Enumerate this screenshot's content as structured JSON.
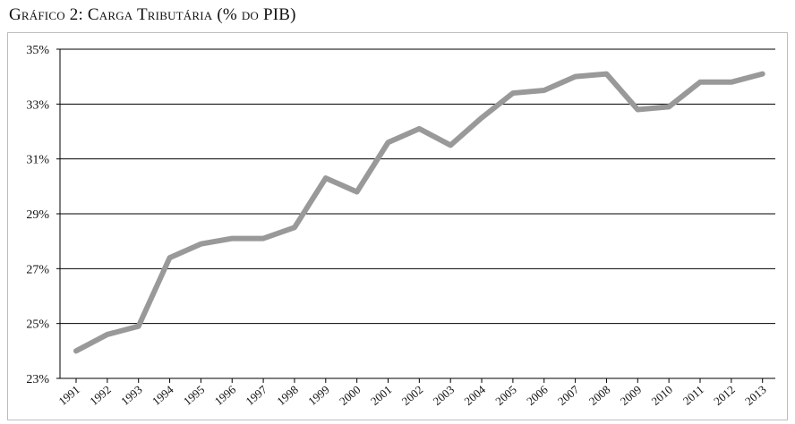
{
  "title": "Gráfico 2: Carga Tributária (% do PIB)",
  "chart_data": {
    "type": "line",
    "title": "Gráfico 2: Carga Tributária (% do PIB)",
    "xlabel": "",
    "ylabel": "",
    "ylim": [
      23,
      35
    ],
    "yticks": [
      23,
      25,
      27,
      29,
      31,
      33,
      35
    ],
    "ytick_labels": [
      "23%",
      "25%",
      "27%",
      "29%",
      "31%",
      "33%",
      "35%"
    ],
    "grid": "horizontal",
    "legend": "none",
    "x": [
      "1991",
      "1992",
      "1993",
      "1994",
      "1995",
      "1996",
      "1997",
      "1998",
      "1999",
      "2000",
      "2001",
      "2002",
      "2003",
      "2004",
      "2005",
      "2006",
      "2007",
      "2008",
      "2009",
      "2010",
      "2011",
      "2012",
      "2013"
    ],
    "series": [
      {
        "color": "#999999",
        "values": [
          24.0,
          24.6,
          24.9,
          27.4,
          27.9,
          28.1,
          28.1,
          28.5,
          30.3,
          29.8,
          31.6,
          32.1,
          31.5,
          32.5,
          33.4,
          33.5,
          34.0,
          34.1,
          32.8,
          32.9,
          33.8,
          33.8,
          34.1
        ]
      }
    ]
  }
}
